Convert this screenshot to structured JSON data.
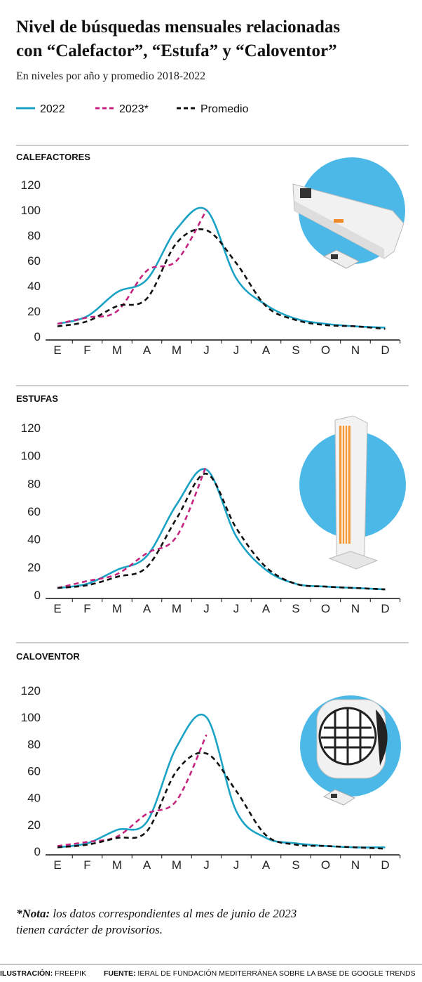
{
  "title": [
    "Nivel de búsquedas mensuales relacionadas",
    "con “Calefactor”, “Estufa” y “Caloventor”"
  ],
  "subtitle": "En niveles por año y promedio 2018-2022",
  "note": {
    "label": "*Nota:",
    "text": [
      "los datos correspondientes al mes de junio de 2023",
      "tienen carácter de provisorios."
    ]
  },
  "credits": {
    "illustration_label": "ILUSTRACIÓN:",
    "illustration": "FREEPIK",
    "source_label": "FUENTE:",
    "source": "IERAL DE FUNDACIÓN MEDITERRÁNEA SOBRE LA BASE DE GOOGLE TRENDS"
  },
  "chart_data": [
    {
      "type": "line",
      "title": "CALEFACTORES",
      "categories": [
        "E",
        "F",
        "M",
        "A",
        "M",
        "J",
        "J",
        "A",
        "S",
        "O",
        "N",
        "D"
      ],
      "series": [
        {
          "name": "2022",
          "color": "#1ba3c6",
          "style": "solid",
          "values": [
            10,
            16,
            35,
            45,
            85,
            100,
            46,
            25,
            14,
            10,
            8,
            7
          ]
        },
        {
          "name": "2023*",
          "color": "#c4247f",
          "style": "dashed",
          "values": [
            10,
            15,
            20,
            52,
            60,
            100,
            null,
            null,
            null,
            null,
            null,
            null
          ]
        },
        {
          "name": "Promedio",
          "color": "#111111",
          "style": "dashed",
          "values": [
            8,
            12,
            24,
            30,
            74,
            84,
            58,
            24,
            13,
            9,
            8,
            6
          ]
        }
      ],
      "ylim": [
        0,
        120
      ],
      "yticks": [
        0,
        20,
        40,
        60,
        80,
        100,
        120
      ]
    },
    {
      "type": "line",
      "title": "ESTUFAS",
      "categories": [
        "E",
        "F",
        "M",
        "A",
        "M",
        "J",
        "J",
        "A",
        "S",
        "O",
        "N",
        "D"
      ],
      "series": [
        {
          "name": "2022",
          "color": "#1ba3c6",
          "style": "solid",
          "values": [
            5,
            8,
            18,
            28,
            65,
            90,
            42,
            18,
            8,
            6,
            5,
            4
          ]
        },
        {
          "name": "2023*",
          "color": "#c4247f",
          "style": "dashed",
          "values": [
            5,
            10,
            15,
            30,
            42,
            93,
            null,
            null,
            null,
            null,
            null,
            null
          ]
        },
        {
          "name": "Promedio",
          "color": "#111111",
          "style": "dashed",
          "values": [
            5,
            7,
            13,
            20,
            55,
            87,
            48,
            20,
            8,
            6,
            5,
            4
          ]
        }
      ],
      "ylim": [
        0,
        120
      ],
      "yticks": [
        0,
        20,
        40,
        60,
        80,
        100,
        120
      ]
    },
    {
      "type": "line",
      "title": "CALOVENTOR",
      "categories": [
        "E",
        "F",
        "M",
        "A",
        "M",
        "J",
        "J",
        "A",
        "S",
        "O",
        "N",
        "D"
      ],
      "series": [
        {
          "name": "2022",
          "color": "#1ba3c6",
          "style": "solid",
          "values": [
            3,
            6,
            16,
            22,
            78,
            100,
            30,
            10,
            6,
            4,
            3,
            3
          ]
        },
        {
          "name": "2023*",
          "color": "#c4247f",
          "style": "dashed",
          "values": [
            4,
            7,
            11,
            28,
            38,
            87,
            null,
            null,
            null,
            null,
            null,
            null
          ]
        },
        {
          "name": "Promedio",
          "color": "#111111",
          "style": "dashed",
          "values": [
            3,
            5,
            10,
            15,
            60,
            73,
            45,
            12,
            5,
            4,
            3,
            2
          ]
        }
      ],
      "ylim": [
        0,
        120
      ],
      "yticks": [
        0,
        20,
        40,
        60,
        80,
        100,
        120
      ]
    }
  ]
}
